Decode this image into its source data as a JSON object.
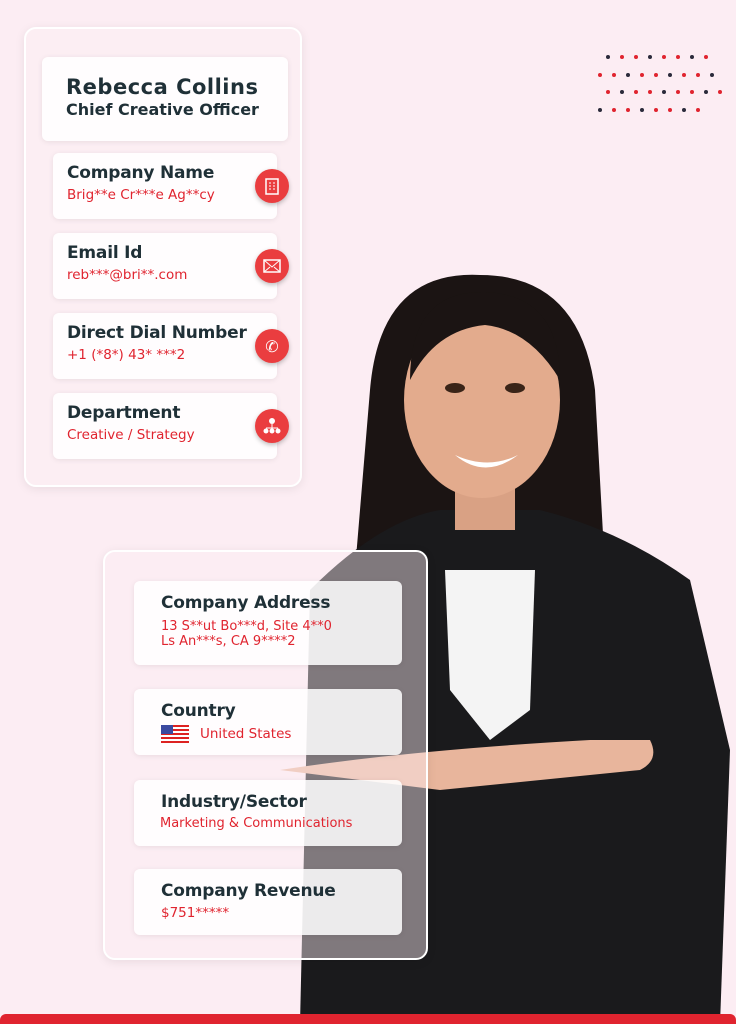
{
  "profile": {
    "name": "Rebecca Collins",
    "title": "Chief Creative Officer"
  },
  "top_fields": [
    {
      "label": "Company Name",
      "value": "Brig**e Cr***e Ag**cy",
      "icon": "building-icon"
    },
    {
      "label": "Email Id",
      "value": "reb***@bri**.com",
      "icon": "envelope-icon"
    },
    {
      "label": "Direct Dial Number",
      "value": "+1 (*8*) 43* ***2",
      "icon": "phone-icon"
    },
    {
      "label": "Department",
      "value": "Creative / Strategy",
      "icon": "org-chart-icon"
    }
  ],
  "bottom_fields": {
    "address": {
      "label": "Company Address",
      "line1": "13 S**ut Bo***d, Site 4**0",
      "line2": "Ls An***s, CA 9****2"
    },
    "country": {
      "label": "Country",
      "value": "United States",
      "icon": "us-flag-icon"
    },
    "industry": {
      "label": "Industry/Sector",
      "value": "Marketing & Communications"
    },
    "revenue": {
      "label": "Company Revenue",
      "value": "$751*****"
    }
  },
  "colors": {
    "accent": "#e0242f",
    "text": "#1f3037",
    "background": "#fcedf3"
  }
}
